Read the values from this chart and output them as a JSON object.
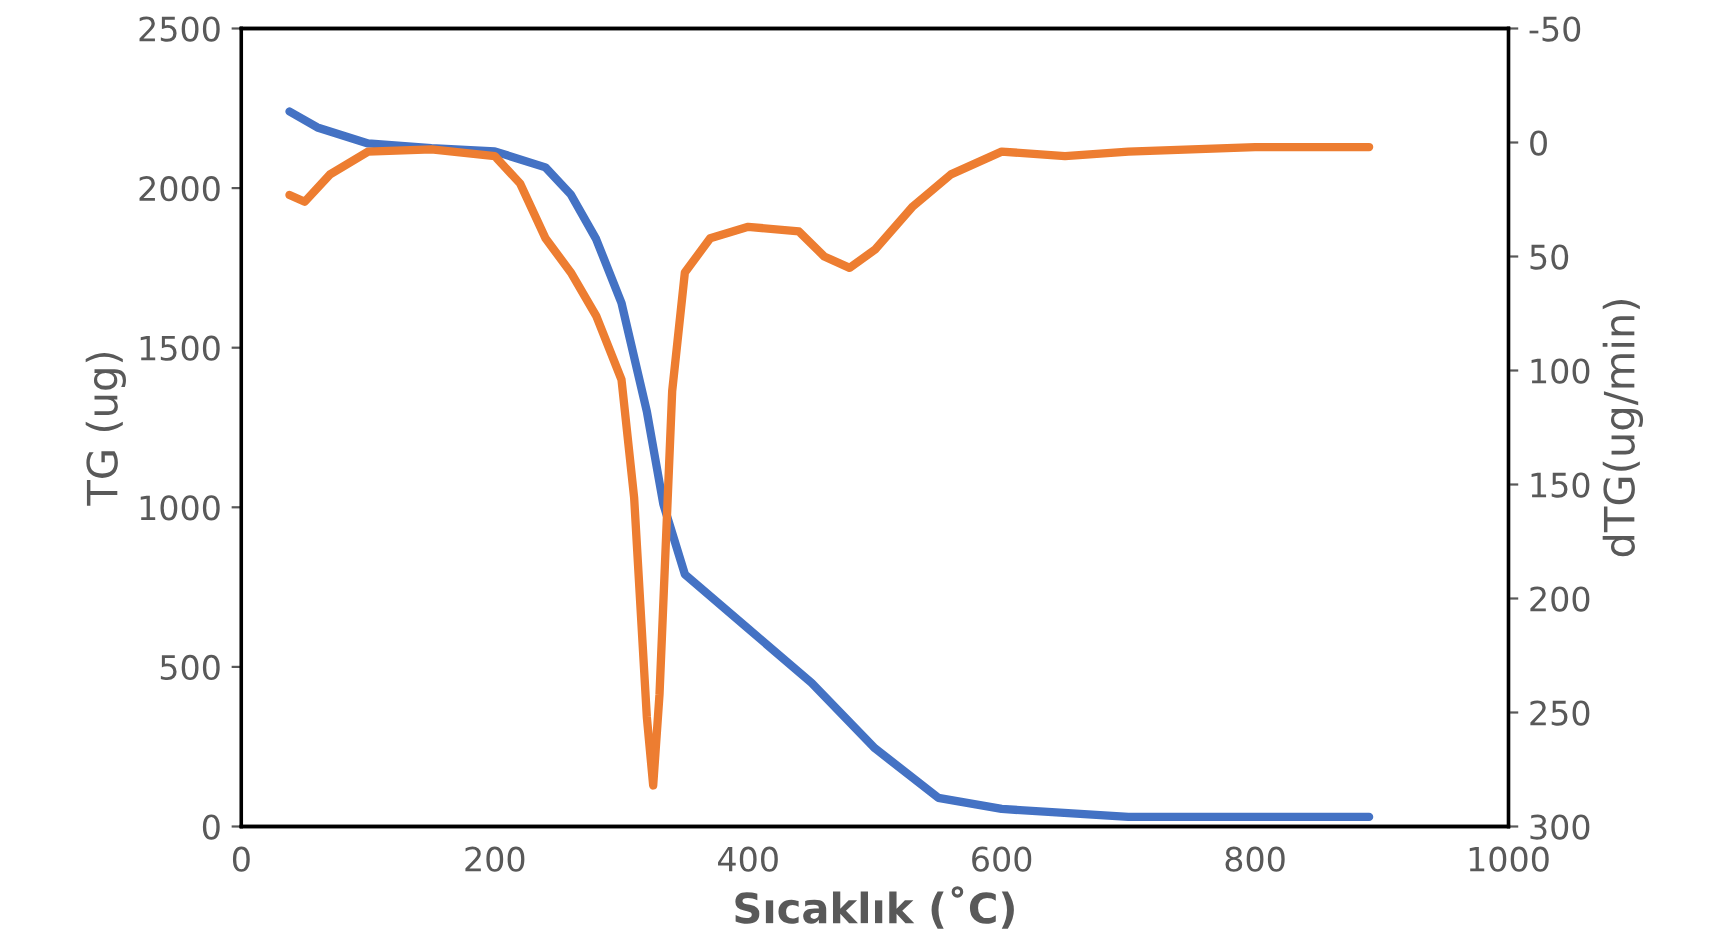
{
  "chart_data": {
    "type": "line",
    "xlabel": "Sıcaklık (˚C)",
    "ylabel": "TG (ug)",
    "y2label": "dTG(ug/min)",
    "xlim": [
      0,
      1000
    ],
    "xticks": [
      0,
      200,
      400,
      600,
      800,
      1000
    ],
    "ylim": [
      0,
      2500
    ],
    "yticks": [
      0,
      500,
      1000,
      1500,
      2000,
      2500
    ],
    "y2lim": [
      300,
      -50
    ],
    "y2ticks": [
      300,
      250,
      200,
      150,
      100,
      50,
      0,
      -50
    ],
    "grid": false,
    "legend": false,
    "marker": "none",
    "line_style": "solid",
    "series": [
      {
        "color": "#4472c4",
        "x": [
          38,
          60,
          100,
          150,
          200,
          240,
          260,
          280,
          300,
          320,
          333,
          350,
          400,
          450,
          500,
          550,
          600,
          700,
          800,
          890
        ],
        "values": [
          2240,
          2190,
          2140,
          2125,
          2115,
          2065,
          1980,
          1840,
          1640,
          1300,
          1010,
          790,
          620,
          450,
          245,
          90,
          55,
          30,
          30,
          30
        ]
      },
      {
        "color": "#ed7d31",
        "axis": "y2",
        "x": [
          38,
          50,
          70,
          100,
          150,
          200,
          220,
          240,
          260,
          280,
          300,
          310,
          320,
          325,
          330,
          340,
          350,
          370,
          400,
          440,
          460,
          480,
          500,
          530,
          560,
          600,
          650,
          700,
          800,
          890
        ],
        "values": [
          23,
          26,
          14,
          4,
          3,
          6,
          18,
          42,
          57,
          76,
          104,
          156,
          252,
          282,
          242,
          109,
          57,
          42,
          37,
          39,
          50,
          55,
          47,
          28,
          14,
          4,
          6,
          4,
          2,
          2
        ]
      }
    ]
  }
}
